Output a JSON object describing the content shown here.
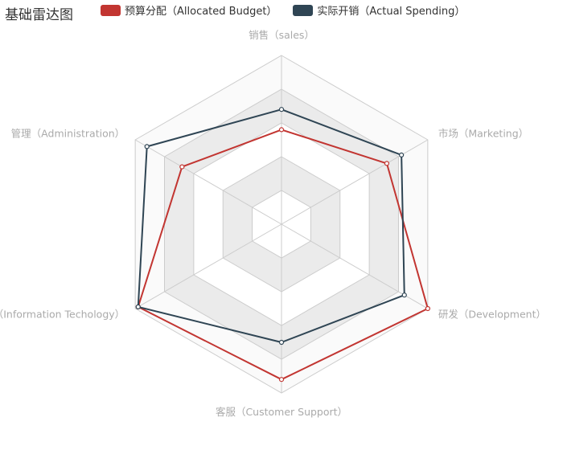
{
  "chart_data": {
    "type": "radar",
    "title": "基础雷达图",
    "indicators": [
      "销售（sales）",
      "市场（Marketing）",
      "研发（Development）",
      "客服（Customer Support）",
      "信息技术（Information Techology）",
      "管理（Administration）"
    ],
    "max": 5,
    "split_number": 5,
    "split_area_colors": [
      "#ffffff",
      "#ebebeb",
      "#ffffff",
      "#ebebeb",
      "#fafafa"
    ],
    "legend_placement": "top",
    "series": [
      {
        "name": "预算分配（Allocated Budget）",
        "color": "#c23531",
        "values": [
          2.8,
          3.6,
          5.0,
          4.6,
          4.9,
          3.4
        ]
      },
      {
        "name": "实际开销（Actual Spending）",
        "color": "#2f4554",
        "values": [
          3.4,
          4.1,
          4.2,
          3.5,
          4.9,
          4.6
        ]
      }
    ]
  }
}
